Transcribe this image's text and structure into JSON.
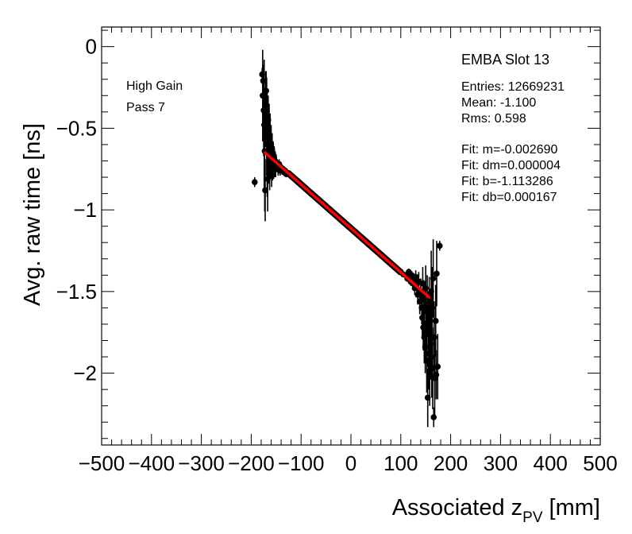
{
  "chart_data": {
    "type": "scatter",
    "title": "",
    "xlabel_main": "Associated z",
    "xlabel_sub": "PV",
    "xlabel_unit": " [mm]",
    "ylabel": "Avg. raw time [ns]",
    "xlim": [
      -500,
      500
    ],
    "ylim": [
      -2.44,
      0.12
    ],
    "x_ticks": [
      -500,
      -400,
      -300,
      -200,
      -100,
      0,
      100,
      200,
      300,
      400,
      500
    ],
    "x_tick_labels": [
      "−500",
      "−400",
      "−300",
      "−200",
      "−100",
      "0",
      "100",
      "200",
      "300",
      "400",
      "500"
    ],
    "y_ticks": [
      0,
      -0.5,
      -1,
      -1.5,
      -2
    ],
    "y_tick_labels": [
      "0",
      "−0.5",
      "−1",
      "−1.5",
      "−2"
    ],
    "grid": false,
    "annotations_left": [
      "High Gain",
      "Pass 7"
    ],
    "stats_box": {
      "title": "EMBA Slot 13",
      "lines": [
        "Entries: 12669231",
        "Mean: -1.100",
        "Rms: 0.598",
        "",
        "Fit: m=-0.002690",
        "Fit: dm=0.000004",
        "Fit: b=-1.113286",
        "Fit: db=0.000167"
      ]
    },
    "fit": {
      "m": -0.00269,
      "b": -1.113286,
      "x_range": [
        -172,
        157
      ],
      "color": "#ff0000"
    },
    "marker_color": "#000000",
    "series": [
      {
        "points": [
          [
            -193,
            -0.83,
            0.03
          ],
          [
            -178,
            -0.17,
            0.04
          ],
          [
            -177,
            -0.3,
            0.28
          ],
          [
            -176,
            -0.21,
            0.06
          ],
          [
            -175,
            -0.39,
            0.28
          ],
          [
            -174,
            -0.48,
            0.4
          ],
          [
            -173,
            -0.64,
            0.37
          ],
          [
            -172,
            -0.88,
            0.19
          ],
          [
            -171,
            -0.37,
            0.22
          ],
          [
            -170,
            -0.27,
            0.12
          ],
          [
            -169,
            -0.49,
            0.3
          ],
          [
            -168,
            -0.6,
            0.32
          ],
          [
            -167,
            -0.81,
            0.2
          ],
          [
            -166,
            -0.45,
            0.15
          ],
          [
            -165,
            -0.64,
            0.2
          ],
          [
            -164,
            -0.55,
            0.2
          ],
          [
            -163,
            -0.72,
            0.16
          ],
          [
            -162,
            -0.59,
            0.18
          ],
          [
            -161,
            -0.68,
            0.13
          ],
          [
            -160,
            -0.6,
            0.12
          ],
          [
            -159,
            -0.74,
            0.12
          ],
          [
            -158,
            -0.63,
            0.1
          ],
          [
            -157,
            -0.72,
            0.1
          ],
          [
            -156,
            -0.66,
            0.08
          ],
          [
            -155,
            -0.73,
            0.08
          ],
          [
            -154,
            -0.68,
            0.07
          ],
          [
            -153,
            -0.74,
            0.06
          ],
          [
            -152,
            -0.7,
            0.06
          ],
          [
            -151,
            -0.75,
            0.05
          ],
          [
            -150,
            -0.71,
            0.05
          ],
          [
            -148,
            -0.73,
            0.04
          ],
          [
            -146,
            -0.75,
            0.04
          ],
          [
            -144,
            -0.72,
            0.03
          ],
          [
            -142,
            -0.76,
            0.03
          ],
          [
            -140,
            -0.74,
            0.03
          ],
          [
            -138,
            -0.76,
            0.025
          ],
          [
            -136,
            -0.75,
            0.02
          ],
          [
            -134,
            -0.77,
            0.02
          ],
          [
            -132,
            -0.76,
            0.02
          ],
          [
            -130,
            -0.78,
            0.02
          ],
          [
            -125,
            -0.78,
            0.015
          ],
          [
            -120,
            -0.79,
            0.015
          ]
        ]
      },
      {
        "points": [
          [
            100,
            -1.38,
            0.01
          ],
          [
            105,
            -1.395,
            0.015
          ],
          [
            110,
            -1.4,
            0.015
          ],
          [
            113,
            -1.42,
            0.02
          ],
          [
            116,
            -1.38,
            0.02
          ],
          [
            118,
            -1.41,
            0.02
          ],
          [
            120,
            -1.44,
            0.025
          ],
          [
            122,
            -1.4,
            0.025
          ],
          [
            124,
            -1.45,
            0.03
          ],
          [
            126,
            -1.42,
            0.03
          ],
          [
            128,
            -1.48,
            0.04
          ],
          [
            130,
            -1.41,
            0.04
          ],
          [
            132,
            -1.46,
            0.05
          ],
          [
            134,
            -1.52,
            0.06
          ],
          [
            136,
            -1.44,
            0.06
          ],
          [
            138,
            -1.56,
            0.08
          ],
          [
            140,
            -1.5,
            0.08
          ],
          [
            142,
            -1.6,
            0.1
          ],
          [
            143,
            -1.66,
            0.12
          ],
          [
            144,
            -1.45,
            0.1
          ],
          [
            145,
            -1.72,
            0.14
          ],
          [
            146,
            -1.55,
            0.12
          ],
          [
            147,
            -1.78,
            0.16
          ],
          [
            148,
            -1.62,
            0.14
          ],
          [
            149,
            -1.84,
            0.16
          ],
          [
            150,
            -1.48,
            0.14
          ],
          [
            151,
            -1.76,
            0.18
          ],
          [
            152,
            -1.92,
            0.2
          ],
          [
            153,
            -1.58,
            0.18
          ],
          [
            154,
            -2.15,
            0.18
          ],
          [
            155,
            -1.7,
            0.2
          ],
          [
            156,
            -1.88,
            0.22
          ],
          [
            157,
            -1.63,
            0.22
          ],
          [
            158,
            -1.95,
            0.25
          ],
          [
            159,
            -1.75,
            0.25
          ],
          [
            160,
            -1.82,
            0.22
          ],
          [
            161,
            -1.5,
            0.25
          ],
          [
            162,
            -1.9,
            0.25
          ],
          [
            163,
            -1.6,
            0.25
          ],
          [
            164,
            -1.97,
            0.25
          ],
          [
            165,
            -1.42,
            0.24
          ],
          [
            166,
            -2.27,
            0.06
          ],
          [
            167,
            -1.78,
            0.22
          ],
          [
            168,
            -2.03,
            0.25
          ],
          [
            170,
            -1.68,
            0.22
          ],
          [
            171,
            -2.01,
            0.15
          ],
          [
            172,
            -1.39,
            0.2
          ],
          [
            174,
            -1.96,
            0.2
          ],
          [
            178,
            -1.22,
            0.03
          ]
        ]
      }
    ]
  }
}
